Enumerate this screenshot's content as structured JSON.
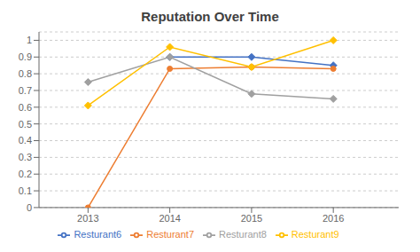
{
  "chart_data": {
    "type": "line",
    "title": "Reputation Over Time",
    "x": [
      2013,
      2014,
      2015,
      2016
    ],
    "series": [
      {
        "name": "Resturant6",
        "color": "#4472C4",
        "marker": "diamond",
        "values": [
          null,
          0.9,
          0.9,
          0.85
        ]
      },
      {
        "name": "Resturant7",
        "color": "#ED7D31",
        "marker": "circle",
        "values": [
          0.0,
          0.83,
          0.84,
          0.83
        ]
      },
      {
        "name": "Resturant8",
        "color": "#A0A0A0",
        "marker": "diamond",
        "values": [
          0.75,
          0.9,
          0.68,
          0.65
        ]
      },
      {
        "name": "Resturant9",
        "color": "#FFC000",
        "marker": "diamond",
        "values": [
          0.61,
          0.96,
          0.84,
          1.0
        ]
      }
    ],
    "xlim": [
      2012.4,
      2016.8
    ],
    "xticks": [
      2013,
      2014,
      2015,
      2016
    ],
    "ylim": [
      0,
      1.05
    ],
    "yticks": [
      0,
      0.1,
      0.2,
      0.3,
      0.4,
      0.5,
      0.6,
      0.7,
      0.8,
      0.9,
      1
    ],
    "grid": "y",
    "legend": "bottom"
  }
}
